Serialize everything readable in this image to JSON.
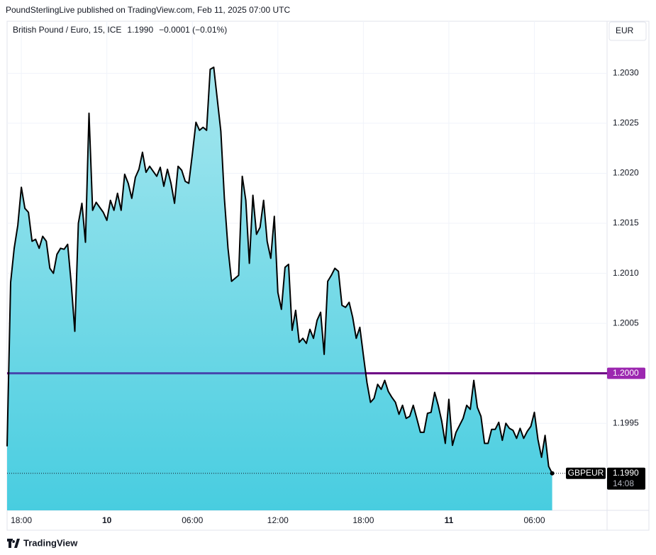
{
  "header": "PoundSterlingLive published on TradingView.com, Feb 11, 2025 07:00 UTC",
  "footer": "TradingView",
  "chart_data": {
    "type": "area",
    "currency": "EUR",
    "legend": {
      "last": "1.1990",
      "change": "−0.0001 (−0.01%)"
    },
    "series": [
      {
        "name": "British Pound / Euro, 15, ICE",
        "color": "#000000",
        "x": [
          17,
          17.25,
          17.5,
          17.75,
          18,
          18.25,
          18.5,
          18.75,
          19,
          19.25,
          19.5,
          19.75,
          20,
          20.25,
          20.5,
          20.75,
          21,
          21.25,
          21.5,
          21.75,
          22,
          22.25,
          22.5,
          22.75,
          23,
          23.25,
          23.5,
          23.75,
          24,
          24.25,
          24.5,
          24.75,
          25,
          25.25,
          25.5,
          25.75,
          26,
          26.25,
          26.5,
          26.75,
          27,
          27.25,
          27.5,
          27.75,
          28,
          28.25,
          28.5,
          28.75,
          29,
          29.25,
          29.5,
          29.75,
          30,
          30.25,
          30.5,
          30.75,
          31,
          31.25,
          31.5,
          31.75,
          32,
          32.25,
          32.5,
          32.75,
          33,
          33.25,
          33.5,
          33.75,
          34,
          34.25,
          34.5,
          34.75,
          35,
          35.25,
          35.5,
          35.75,
          36,
          36.25,
          36.5,
          36.75,
          37,
          37.25,
          37.5,
          37.75,
          38,
          38.25,
          38.5,
          38.75,
          39,
          39.25,
          39.5,
          39.75,
          40,
          40.25,
          40.5,
          40.75,
          41,
          41.25,
          41.5,
          41.75,
          42,
          42.25,
          42.5,
          42.75,
          43,
          43.25,
          43.5,
          43.75,
          44,
          44.25,
          44.5,
          44.75,
          45,
          45.25,
          45.5,
          45.75,
          46,
          46.25,
          46.5,
          46.75,
          47,
          47.25,
          47.5,
          47.75,
          48,
          48.25,
          48.5,
          48.75,
          49,
          49.25,
          49.5,
          49.75,
          50,
          50.25,
          50.5,
          50.75,
          51,
          51.25,
          51.5,
          51.75,
          52,
          52.25,
          52.5,
          52.75,
          53,
          53.25,
          53.5,
          53.75,
          54,
          54.25,
          54.5,
          54.75,
          55,
          55.25
        ],
        "values": [
          1.19927,
          1.20091,
          1.20125,
          1.20148,
          1.20186,
          1.20165,
          1.20161,
          1.20132,
          1.20134,
          1.20125,
          1.20137,
          1.20132,
          1.20105,
          1.201,
          1.20119,
          1.20125,
          1.20124,
          1.20129,
          1.2009,
          1.20042,
          1.2015,
          1.2017,
          1.20131,
          1.2026,
          1.20163,
          1.20171,
          1.20166,
          1.20161,
          1.20153,
          1.20173,
          1.20163,
          1.2018,
          1.20163,
          1.20199,
          1.2019,
          1.20175,
          1.20196,
          1.20204,
          1.20221,
          1.20201,
          1.20207,
          1.20202,
          1.20197,
          1.20206,
          1.20187,
          1.20204,
          1.2019,
          1.2017,
          1.20207,
          1.20203,
          1.20192,
          1.2019,
          1.20219,
          1.20251,
          1.20243,
          1.20246,
          1.20243,
          1.20304,
          1.20306,
          1.20274,
          1.20242,
          1.20175,
          1.20125,
          1.20092,
          1.20095,
          1.20098,
          1.20197,
          1.20173,
          1.2011,
          1.20178,
          1.20139,
          1.20146,
          1.20173,
          1.20132,
          1.20115,
          1.20157,
          1.20081,
          1.20064,
          1.20106,
          1.20109,
          1.20043,
          1.20063,
          1.20031,
          1.20035,
          1.2003,
          1.20044,
          1.20035,
          1.20053,
          1.20061,
          1.20019,
          1.20092,
          1.20098,
          1.20105,
          1.20102,
          1.20068,
          1.20066,
          1.20071,
          1.20056,
          1.20035,
          1.20046,
          1.20018,
          1.19991,
          1.19971,
          1.19975,
          1.19989,
          1.19984,
          1.19993,
          1.19982,
          1.19976,
          1.19971,
          1.19959,
          1.19968,
          1.19955,
          1.19957,
          1.19968,
          1.19955,
          1.19941,
          1.19941,
          1.1996,
          1.19961,
          1.19981,
          1.19968,
          1.19952,
          1.1993,
          1.19974,
          1.19928,
          1.19941,
          1.19948,
          1.19955,
          1.19968,
          1.19964,
          1.19993,
          1.19966,
          1.19957,
          1.1993,
          1.1993,
          1.19944,
          1.19944,
          1.19951,
          1.19933,
          1.1995,
          1.19945,
          1.19943,
          1.19935,
          1.19945,
          1.19935,
          1.19942,
          1.19947,
          1.19961,
          1.19934,
          1.19916,
          1.19938,
          1.19907,
          1.199
        ]
      }
    ],
    "xlim": [
      17.0,
      59.1
    ],
    "xticks": [
      {
        "value": 18,
        "label": "18:00"
      },
      {
        "value": 24,
        "label": "10"
      },
      {
        "value": 30,
        "label": "06:00"
      },
      {
        "value": 36,
        "label": "12:00"
      },
      {
        "value": 42,
        "label": "18:00"
      },
      {
        "value": 48,
        "label": "11"
      },
      {
        "value": 54,
        "label": "06:00"
      }
    ],
    "ylim": [
      1.19863,
      1.20352
    ],
    "yticks": [
      1.1995,
      {
        "value": 1.2005,
        "label": "1.2005"
      },
      {
        "value": 1.201,
        "label": "1.2010"
      },
      1.2015,
      {
        "value": 1.202,
        "label": "1.2020"
      },
      1.2025,
      {
        "value": 1.203,
        "label": "1.2030"
      }
    ],
    "grid": true,
    "hline": {
      "value": 1.2,
      "label": "1.2000",
      "color": "#9c27b0"
    },
    "last_price": {
      "symbol": "GBPEUR",
      "value": 1.199,
      "label": "1.1990",
      "countdown": "14:08"
    }
  }
}
